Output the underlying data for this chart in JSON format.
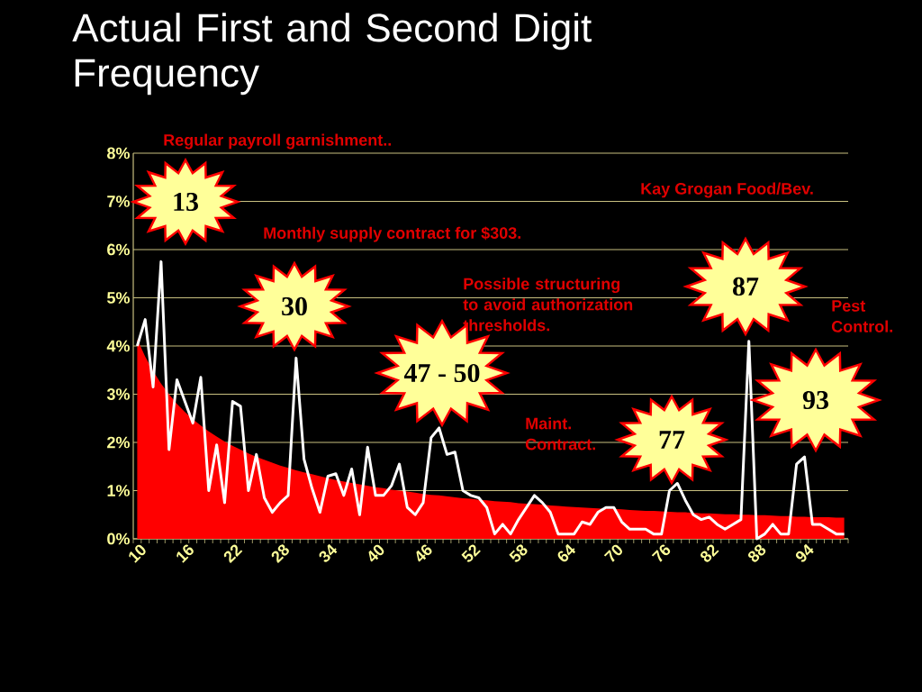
{
  "chart_data": {
    "type": "area",
    "title": "Actual First and Second Digit Frequency",
    "categories": [
      "10",
      null,
      null,
      null,
      null,
      null,
      "16",
      null,
      null,
      null,
      null,
      null,
      "22",
      null,
      null,
      null,
      null,
      null,
      "28",
      null,
      null,
      null,
      null,
      null,
      "34",
      null,
      null,
      null,
      null,
      null,
      "40",
      null,
      null,
      null,
      null,
      null,
      "46",
      null,
      null,
      null,
      null,
      null,
      "52",
      null,
      null,
      null,
      null,
      null,
      "58",
      null,
      null,
      null,
      null,
      null,
      "64",
      null,
      null,
      null,
      null,
      null,
      "70",
      null,
      null,
      null,
      null,
      null,
      "76",
      null,
      null,
      null,
      null,
      null,
      "82",
      null,
      null,
      null,
      null,
      null,
      "88",
      null,
      null,
      null,
      null,
      null,
      "94",
      null,
      null,
      null,
      null,
      null
    ],
    "series": [
      {
        "color": "#ff0000",
        "values": [
          4.14,
          3.78,
          3.48,
          3.22,
          3.0,
          2.8,
          2.63,
          2.48,
          2.35,
          2.23,
          2.12,
          2.02,
          1.93,
          1.85,
          1.77,
          1.7,
          1.64,
          1.58,
          1.52,
          1.47,
          1.42,
          1.38,
          1.34,
          1.3,
          1.26,
          1.22,
          1.19,
          1.16,
          1.13,
          1.1,
          1.07,
          1.05,
          1.02,
          1.0,
          0.98,
          0.96,
          0.93,
          0.91,
          0.9,
          0.88,
          0.86,
          0.84,
          0.83,
          0.81,
          0.8,
          0.78,
          0.77,
          0.76,
          0.74,
          0.73,
          0.72,
          0.71,
          0.69,
          0.68,
          0.67,
          0.66,
          0.65,
          0.64,
          0.63,
          0.62,
          0.62,
          0.61,
          0.6,
          0.59,
          0.58,
          0.58,
          0.57,
          0.56,
          0.55,
          0.55,
          0.54,
          0.53,
          0.53,
          0.52,
          0.51,
          0.51,
          0.5,
          0.5,
          0.49,
          0.49,
          0.48,
          0.47,
          0.47,
          0.46,
          0.46,
          0.45,
          0.45,
          0.45,
          0.44,
          0.44
        ]
      },
      {
        "type": "line",
        "color": "#ffffff",
        "values": [
          4.0,
          4.55,
          3.15,
          5.75,
          1.85,
          3.3,
          2.85,
          2.4,
          3.35,
          1.0,
          1.95,
          0.75,
          2.85,
          2.75,
          1.0,
          1.75,
          0.85,
          0.55,
          0.75,
          0.9,
          3.75,
          1.65,
          1.05,
          0.55,
          1.3,
          1.35,
          0.9,
          1.45,
          0.5,
          1.9,
          0.9,
          0.9,
          1.1,
          1.55,
          0.65,
          0.5,
          0.75,
          2.1,
          2.3,
          1.75,
          1.8,
          1.0,
          0.9,
          0.85,
          0.65,
          0.1,
          0.3,
          0.1,
          0.4,
          0.65,
          0.9,
          0.75,
          0.55,
          0.1,
          0.1,
          0.1,
          0.35,
          0.3,
          0.55,
          0.65,
          0.65,
          0.35,
          0.2,
          0.2,
          0.2,
          0.1,
          0.1,
          1.0,
          1.15,
          0.8,
          0.5,
          0.4,
          0.45,
          0.3,
          0.2,
          0.3,
          0.4,
          4.1,
          0.0,
          0.1,
          0.3,
          0.1,
          0.1,
          1.55,
          1.7,
          0.3,
          0.3,
          0.2,
          0.1,
          0.1
        ]
      }
    ],
    "ylim": [
      0,
      8
    ],
    "yticks": [
      {
        "value": 0,
        "label": "0%"
      },
      {
        "value": 1,
        "label": "1%"
      },
      {
        "value": 2,
        "label": "2%"
      },
      {
        "value": 3,
        "label": "3%"
      },
      {
        "value": 4,
        "label": "4%"
      },
      {
        "value": 5,
        "label": "5%"
      },
      {
        "value": 6,
        "label": "6%"
      },
      {
        "value": 7,
        "label": "7%"
      },
      {
        "value": 8,
        "label": "8%"
      }
    ],
    "grid": "y",
    "annotations": [
      "Regular payroll garnishment..",
      "13",
      "Monthly supply contract for $303.",
      "30",
      "Possible structuring to avoid authorization thresholds.",
      "47 - 50",
      "Maint. Contract.",
      "77",
      "Kay Grogan Food/Bev.",
      "87",
      "Pest Control.",
      "93"
    ]
  }
}
